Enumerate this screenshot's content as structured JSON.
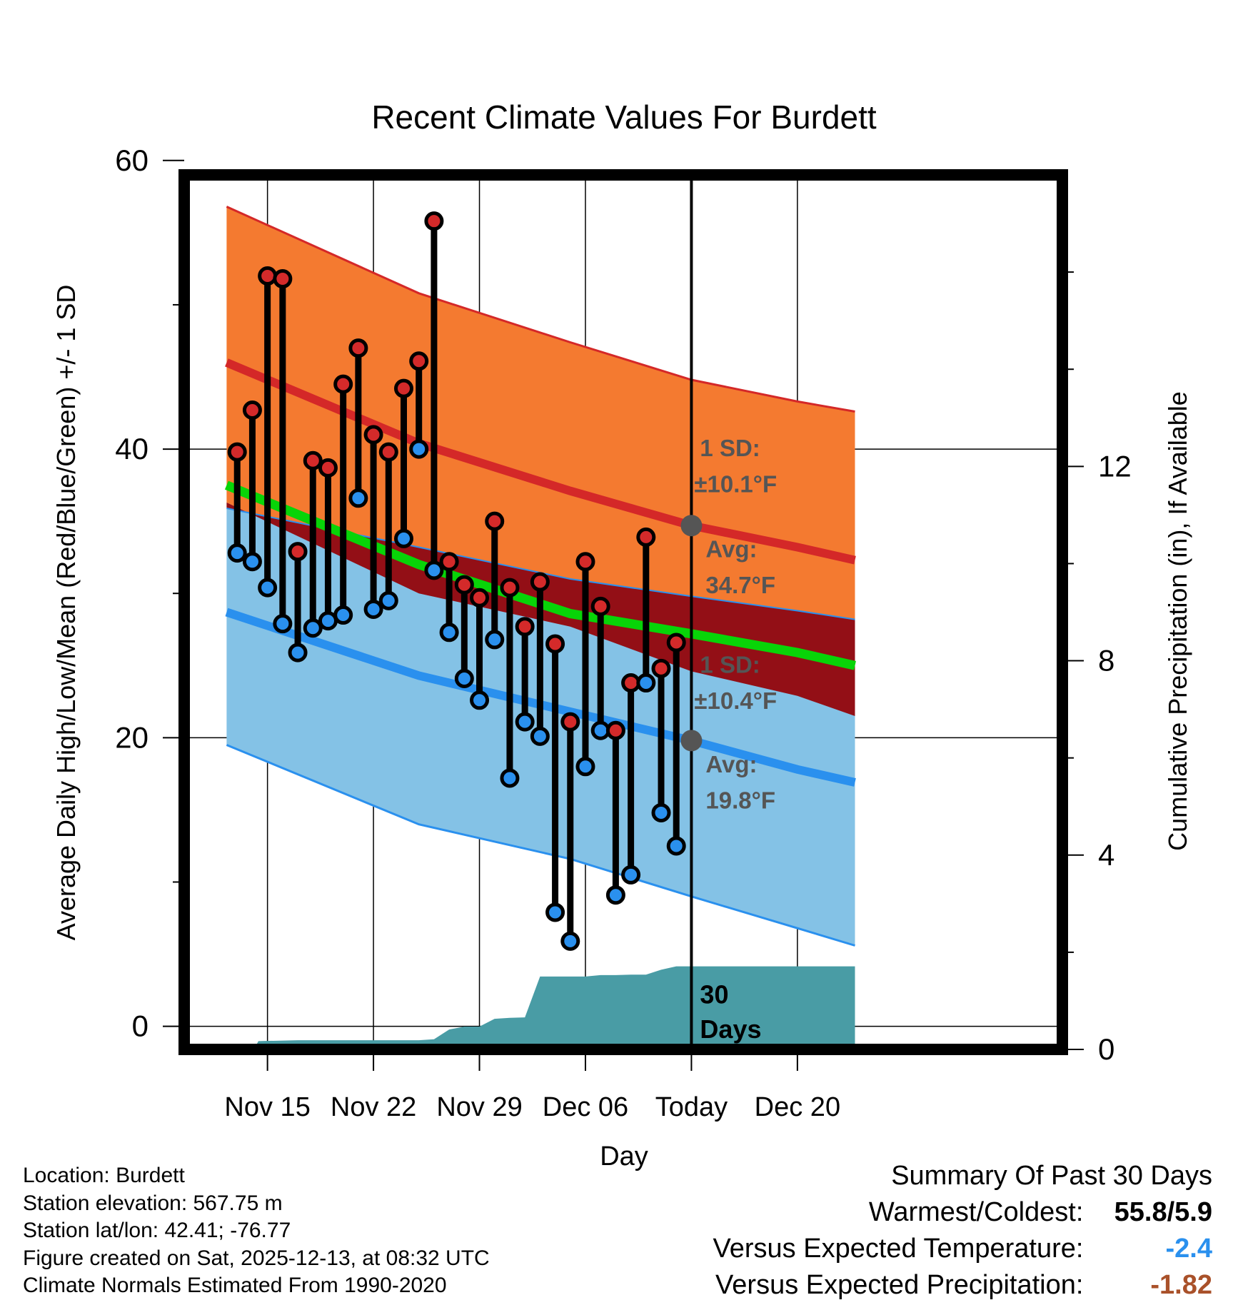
{
  "chart_data": {
    "type": "climate-band",
    "title": "Recent Climate Values For Burdett",
    "xlabel": "Day",
    "ylabel_left": "Average Daily High/Low/Mean (Red/Blue/Green) +/- 1 SD",
    "ylabel_right": "Cumulative Precipitation (in), If Available",
    "x_range": [
      -5.5,
      52.5
    ],
    "x_ticks": [
      {
        "x": 0,
        "label": "Nov 15"
      },
      {
        "x": 7,
        "label": "Nov 22"
      },
      {
        "x": 14,
        "label": "Nov 29"
      },
      {
        "x": 21,
        "label": "Dec 06"
      },
      {
        "x": 28,
        "label": "Today"
      },
      {
        "x": 35,
        "label": "Dec 20"
      }
    ],
    "y_left_range": [
      -1.6,
      59.0
    ],
    "y_left_ticks": [
      0,
      20,
      40,
      60
    ],
    "y_left_minor": [
      10,
      30,
      50
    ],
    "y_right_range": [
      0,
      18
    ],
    "y_right_ticks": [
      0,
      4,
      8,
      12
    ],
    "normals": {
      "x": [
        -2.7,
        10,
        20,
        28,
        35,
        38.8
      ],
      "high_avg": [
        46.0,
        40.4,
        37.1,
        34.7,
        33.2,
        32.3
      ],
      "high_upper": [
        56.8,
        50.8,
        47.4,
        44.8,
        43.3,
        42.6
      ],
      "high_lower": [
        36.3,
        30.0,
        27.7,
        24.6,
        22.9,
        21.5
      ],
      "mean_avg": [
        37.5,
        32.0,
        28.6,
        27.2,
        25.9,
        25.0
      ],
      "low_upper": [
        35.9,
        33.2,
        31.0,
        29.8,
        28.8,
        28.2
      ],
      "low_avg": [
        28.7,
        24.3,
        21.8,
        19.8,
        17.8,
        16.9
      ],
      "low_lower": [
        19.5,
        14.0,
        11.6,
        9.0,
        6.8,
        5.6
      ]
    },
    "observed": {
      "x": [
        -2,
        -1,
        0,
        1,
        2,
        3,
        4,
        5,
        6,
        7,
        8,
        9,
        10,
        11,
        12,
        13,
        14,
        15,
        16,
        17,
        18,
        19,
        20,
        21,
        22,
        23,
        24,
        25,
        26,
        27
      ],
      "highs": [
        39.8,
        42.7,
        52.0,
        51.8,
        32.9,
        39.2,
        38.7,
        44.5,
        47.0,
        41.0,
        39.8,
        44.2,
        46.1,
        55.8,
        32.2,
        30.6,
        29.7,
        35.0,
        30.4,
        27.7,
        30.8,
        26.5,
        21.1,
        32.2,
        29.1,
        20.5,
        23.8,
        33.9,
        24.8,
        26.6
      ],
      "lows": [
        32.8,
        32.2,
        30.4,
        27.9,
        25.9,
        27.6,
        28.1,
        28.5,
        36.6,
        28.9,
        29.5,
        33.8,
        40.0,
        31.6,
        27.3,
        24.1,
        22.6,
        26.8,
        17.2,
        21.1,
        20.1,
        7.9,
        5.9,
        18.0,
        20.5,
        9.1,
        10.5,
        23.8,
        14.8,
        12.5
      ]
    },
    "precipitation": {
      "x": [
        -5,
        -0.9,
        -0.6,
        2,
        5,
        10,
        11,
        12,
        13,
        14,
        15,
        16,
        17,
        18,
        19,
        20,
        21,
        22,
        23,
        24,
        25,
        26,
        27,
        35,
        38.8
      ],
      "cumulative_in": [
        0,
        0,
        0.17,
        0.19,
        0.19,
        0.19,
        0.21,
        0.41,
        0.47,
        0.47,
        0.63,
        0.65,
        0.66,
        1.5,
        1.5,
        1.5,
        1.5,
        1.53,
        1.53,
        1.54,
        1.54,
        1.64,
        1.71,
        1.71,
        1.71
      ]
    },
    "annotations": {
      "high_sd": "1 SD:",
      "high_sd_val": "±10.1°F",
      "high_avg_label": "Avg:",
      "high_avg_val": "34.7°F",
      "low_sd": "1 SD:",
      "low_sd_val": "±10.4°F",
      "low_avg_label": "Avg:",
      "low_avg_val": "19.8°F",
      "period_num": "30",
      "period_unit": "Days"
    },
    "colors": {
      "high_band": "#f47a30",
      "high_line": "#d42828",
      "overlap": "#930f16",
      "low_band": "#84c2e6",
      "low_line": "#2a90ee",
      "mean_line": "#08d408",
      "precip": "#499ca5",
      "dot_high": "#d42a2a",
      "dot_low": "#2a90ee",
      "annotation": "#555555"
    }
  },
  "info": {
    "location": "Location: Burdett",
    "elevation": "Station elevation: 567.75 m",
    "latlon": "Station lat/lon: 42.41; -76.77",
    "created": "Figure created on Sat, 2025-12-13, at 08:32 UTC",
    "normals": "Climate Normals Estimated From 1990-2020"
  },
  "summary": {
    "title": "Summary Of Past 30 Days",
    "warm_cold_label": "Warmest/Coldest:",
    "warm_cold_value": "55.8/5.9",
    "temp_label": "Versus Expected Temperature:",
    "temp_value": "-2.4",
    "temp_color": "#2a90ee",
    "precip_label": "Versus Expected Precipitation:",
    "precip_value": "-1.82",
    "precip_color": "#a9512a"
  }
}
